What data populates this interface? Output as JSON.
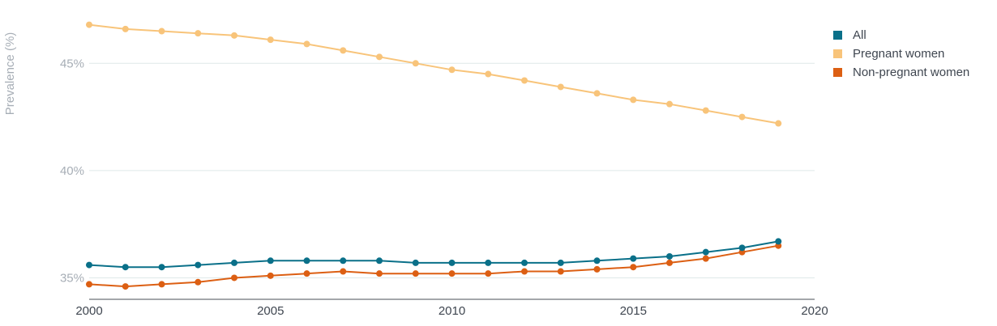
{
  "chart_data": {
    "type": "line",
    "title": "",
    "xlabel": "",
    "ylabel": "Prevalence (%)",
    "xlim": [
      2000,
      2020
    ],
    "ylim": [
      34,
      47.5
    ],
    "x_ticks": [
      2000,
      2005,
      2010,
      2015,
      2020
    ],
    "y_ticks": [
      35,
      40,
      45
    ],
    "y_tick_format": "{v}%",
    "grid": "horizontal",
    "legend": "right",
    "x": [
      2000,
      2001,
      2002,
      2003,
      2004,
      2005,
      2006,
      2007,
      2008,
      2009,
      2010,
      2011,
      2012,
      2013,
      2014,
      2015,
      2016,
      2017,
      2018,
      2019
    ],
    "series": [
      {
        "name": "All",
        "color": "#0a7089",
        "values": [
          35.6,
          35.5,
          35.5,
          35.6,
          35.7,
          35.8,
          35.8,
          35.8,
          35.8,
          35.7,
          35.7,
          35.7,
          35.7,
          35.7,
          35.8,
          35.9,
          36.0,
          36.2,
          36.4,
          36.7
        ]
      },
      {
        "name": "Pregnant women",
        "color": "#f8c47a",
        "values": [
          46.8,
          46.6,
          46.5,
          46.4,
          46.3,
          46.1,
          45.9,
          45.6,
          45.3,
          45.0,
          44.7,
          44.5,
          44.2,
          43.9,
          43.6,
          43.3,
          43.1,
          42.8,
          42.5,
          42.2
        ]
      },
      {
        "name": "Non-pregnant women",
        "color": "#dc5f13",
        "values": [
          34.7,
          34.6,
          34.7,
          34.8,
          35.0,
          35.1,
          35.2,
          35.3,
          35.2,
          35.2,
          35.2,
          35.2,
          35.3,
          35.3,
          35.4,
          35.5,
          35.7,
          35.9,
          36.2,
          36.5
        ]
      }
    ]
  }
}
